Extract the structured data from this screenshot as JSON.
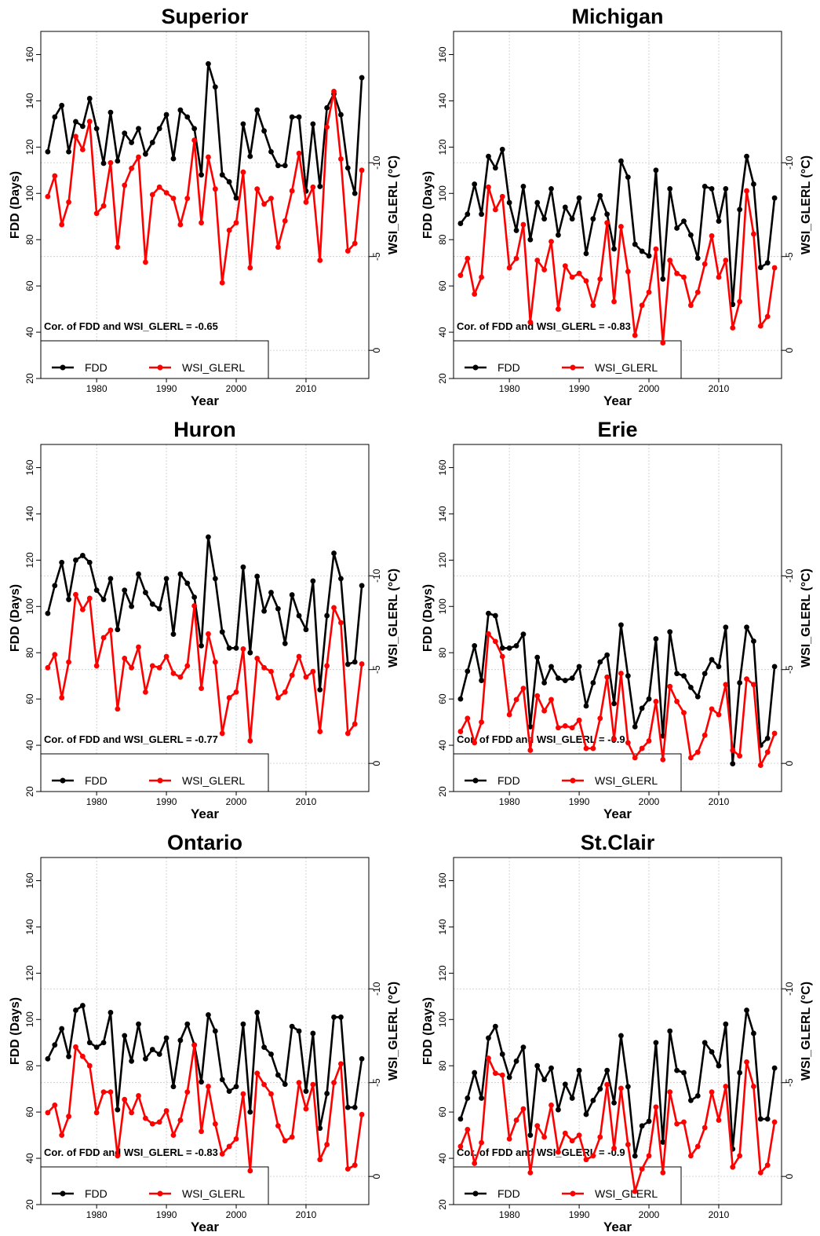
{
  "chart_data": [
    {
      "type": "line",
      "title": "Superior",
      "xlabel": "Year",
      "ylabel": "FDD (Days)",
      "y2label": "WSI_GLERL (°C)",
      "xlim": [
        1972,
        2019
      ],
      "ylim": [
        20,
        170
      ],
      "y2lim": [
        1.5,
        -17
      ],
      "xticks": [
        1980,
        1990,
        2000,
        2010
      ],
      "yticks": [
        20,
        40,
        60,
        80,
        100,
        120,
        140,
        160
      ],
      "y2ticks": [
        0,
        -5,
        -10
      ],
      "grid": true,
      "legend_position": "bottom-left",
      "annotation": "Cor. of FDD and WSI_GLERL = -0.65",
      "x": [
        1973,
        1974,
        1975,
        1976,
        1977,
        1978,
        1979,
        1980,
        1981,
        1982,
        1983,
        1984,
        1985,
        1986,
        1987,
        1988,
        1989,
        1990,
        1991,
        1992,
        1993,
        1994,
        1995,
        1996,
        1997,
        1998,
        1999,
        2000,
        2001,
        2002,
        2003,
        2004,
        2005,
        2006,
        2007,
        2008,
        2009,
        2010,
        2011,
        2012,
        2013,
        2014,
        2015,
        2016,
        2017,
        2018
      ],
      "series": [
        {
          "name": "FDD",
          "color": "#000000",
          "axis": "left",
          "values": [
            118,
            133,
            138,
            118,
            131,
            129,
            141,
            128,
            113,
            135,
            114,
            126,
            122,
            128,
            117,
            122,
            128,
            134,
            115,
            136,
            133,
            128,
            108,
            156,
            146,
            108,
            105,
            98,
            130,
            116,
            136,
            127,
            118,
            112,
            112,
            133,
            133,
            101,
            130,
            103,
            137,
            143,
            134,
            111,
            100,
            150
          ]
        },
        {
          "name": "WSI_GLERL",
          "color": "#ff0000",
          "axis": "right",
          "values": [
            -8.2,
            -9.3,
            -6.7,
            -7.9,
            -11.4,
            -10.7,
            -12.2,
            -7.3,
            -7.7,
            -10.0,
            -5.5,
            -8.8,
            -9.7,
            -10.3,
            -4.7,
            -8.3,
            -8.7,
            -8.4,
            -8.1,
            -6.7,
            -8.1,
            -11.2,
            -6.8,
            -10.3,
            -8.6,
            -3.6,
            -6.4,
            -6.8,
            -9.5,
            -4.4,
            -8.6,
            -7.8,
            -8.1,
            -5.5,
            -6.9,
            -8.5,
            -10.5,
            -7.9,
            -8.7,
            -4.8,
            -11.9,
            -13.8,
            -10.2,
            -5.3,
            -5.7,
            -9.6
          ]
        }
      ]
    },
    {
      "type": "line",
      "title": "Michigan",
      "xlabel": "Year",
      "ylabel": "FDD (Days)",
      "y2label": "WSI_GLERL (°C)",
      "xlim": [
        1972,
        2019
      ],
      "ylim": [
        20,
        170
      ],
      "y2lim": [
        1.5,
        -17
      ],
      "xticks": [
        1980,
        1990,
        2000,
        2010
      ],
      "yticks": [
        20,
        40,
        60,
        80,
        100,
        120,
        140,
        160
      ],
      "y2ticks": [
        0,
        -5,
        -10
      ],
      "grid": true,
      "legend_position": "bottom-left",
      "annotation": "Cor. of FDD and WSI_GLERL = -0.83",
      "x": [
        1973,
        1974,
        1975,
        1976,
        1977,
        1978,
        1979,
        1980,
        1981,
        1982,
        1983,
        1984,
        1985,
        1986,
        1987,
        1988,
        1989,
        1990,
        1991,
        1992,
        1993,
        1994,
        1995,
        1996,
        1997,
        1998,
        1999,
        2000,
        2001,
        2002,
        2003,
        2004,
        2005,
        2006,
        2007,
        2008,
        2009,
        2010,
        2011,
        2012,
        2013,
        2014,
        2015,
        2016,
        2017,
        2018
      ],
      "series": [
        {
          "name": "FDD",
          "color": "#000000",
          "axis": "left",
          "values": [
            87,
            91,
            104,
            91,
            116,
            111,
            119,
            96,
            84,
            103,
            80,
            96,
            89,
            102,
            82,
            94,
            89,
            98,
            74,
            89,
            99,
            91,
            76,
            114,
            107,
            78,
            75,
            73,
            110,
            63,
            102,
            85,
            88,
            82,
            72,
            103,
            102,
            88,
            102,
            52,
            93,
            116,
            104,
            68,
            70,
            98
          ]
        },
        {
          "name": "WSI_GLERL",
          "color": "#ff0000",
          "axis": "right",
          "values": [
            -4.0,
            -4.9,
            -3.0,
            -3.9,
            -8.7,
            -7.5,
            -8.2,
            -4.4,
            -4.9,
            -6.7,
            -1.5,
            -4.8,
            -4.3,
            -5.8,
            -2.2,
            -4.5,
            -3.9,
            -4.1,
            -3.7,
            -2.4,
            -3.8,
            -6.8,
            -2.6,
            -6.6,
            -4.2,
            -0.8,
            -2.4,
            -3.1,
            -5.4,
            -0.4,
            -4.8,
            -4.1,
            -3.9,
            -2.4,
            -3.1,
            -4.6,
            -6.1,
            -3.9,
            -4.8,
            -1.2,
            -2.6,
            -8.5,
            -6.2,
            -1.3,
            -1.8,
            -4.4
          ]
        }
      ]
    },
    {
      "type": "line",
      "title": "Huron",
      "xlabel": "Year",
      "ylabel": "FDD (Days)",
      "y2label": "WSI_GLERL (°C)",
      "xlim": [
        1972,
        2019
      ],
      "ylim": [
        20,
        170
      ],
      "y2lim": [
        1.5,
        -17
      ],
      "xticks": [
        1980,
        1990,
        2000,
        2010
      ],
      "yticks": [
        20,
        40,
        60,
        80,
        100,
        120,
        140,
        160
      ],
      "y2ticks": [
        0,
        -5,
        -10
      ],
      "grid": true,
      "legend_position": "bottom-left",
      "annotation": "Cor. of FDD and WSI_GLERL = -0.77",
      "x": [
        1973,
        1974,
        1975,
        1976,
        1977,
        1978,
        1979,
        1980,
        1981,
        1982,
        1983,
        1984,
        1985,
        1986,
        1987,
        1988,
        1989,
        1990,
        1991,
        1992,
        1993,
        1994,
        1995,
        1996,
        1997,
        1998,
        1999,
        2000,
        2001,
        2002,
        2003,
        2004,
        2005,
        2006,
        2007,
        2008,
        2009,
        2010,
        2011,
        2012,
        2013,
        2014,
        2015,
        2016,
        2017,
        2018
      ],
      "series": [
        {
          "name": "FDD",
          "color": "#000000",
          "axis": "left",
          "values": [
            97,
            109,
            119,
            103,
            120,
            122,
            119,
            107,
            103,
            112,
            90,
            107,
            100,
            114,
            106,
            101,
            99,
            112,
            88,
            114,
            110,
            104,
            83,
            130,
            112,
            89,
            82,
            82,
            117,
            80,
            113,
            98,
            106,
            99,
            84,
            105,
            96,
            90,
            111,
            64,
            96,
            123,
            112,
            75,
            76,
            109
          ]
        },
        {
          "name": "WSI_GLERL",
          "color": "#ff0000",
          "axis": "right",
          "values": [
            -5.1,
            -5.8,
            -3.5,
            -5.4,
            -9.0,
            -8.2,
            -8.8,
            -5.2,
            -6.7,
            -7.1,
            -2.9,
            -5.6,
            -5.1,
            -6.2,
            -3.8,
            -5.2,
            -5.1,
            -5.7,
            -4.8,
            -4.6,
            -5.2,
            -8.4,
            -4.0,
            -6.9,
            -5.4,
            -1.6,
            -3.5,
            -3.8,
            -6.1,
            -1.2,
            -5.6,
            -5.1,
            -4.9,
            -3.5,
            -3.8,
            -4.7,
            -5.7,
            -4.6,
            -4.9,
            -1.7,
            -5.2,
            -8.3,
            -7.5,
            -1.6,
            -2.1,
            -5.3
          ]
        }
      ]
    },
    {
      "type": "line",
      "title": "Erie",
      "xlabel": "Year",
      "ylabel": "FDD (Days)",
      "y2label": "WSI_GLERL (°C)",
      "xlim": [
        1972,
        2019
      ],
      "ylim": [
        20,
        170
      ],
      "y2lim": [
        1.5,
        -17
      ],
      "xticks": [
        1980,
        1990,
        2000,
        2010
      ],
      "yticks": [
        20,
        40,
        60,
        80,
        100,
        120,
        140,
        160
      ],
      "y2ticks": [
        0,
        -5,
        -10
      ],
      "grid": true,
      "legend_position": "bottom-left",
      "annotation": "Cor. of FDD and WSI_GLERL = -0.9",
      "x": [
        1973,
        1974,
        1975,
        1976,
        1977,
        1978,
        1979,
        1980,
        1981,
        1982,
        1983,
        1984,
        1985,
        1986,
        1987,
        1988,
        1989,
        1990,
        1991,
        1992,
        1993,
        1994,
        1995,
        1996,
        1997,
        1998,
        1999,
        2000,
        2001,
        2002,
        2003,
        2004,
        2005,
        2006,
        2007,
        2008,
        2009,
        2010,
        2011,
        2012,
        2013,
        2014,
        2015,
        2016,
        2017,
        2018
      ],
      "series": [
        {
          "name": "FDD",
          "color": "#000000",
          "axis": "left",
          "values": [
            60,
            72,
            83,
            68,
            97,
            96,
            82,
            82,
            83,
            88,
            48,
            78,
            67,
            74,
            69,
            68,
            69,
            74,
            57,
            67,
            76,
            79,
            58,
            92,
            70,
            48,
            56,
            60,
            86,
            44,
            89,
            71,
            70,
            65,
            61,
            71,
            77,
            74,
            91,
            32,
            67,
            91,
            85,
            40,
            43,
            74
          ]
        },
        {
          "name": "WSI_GLERL",
          "color": "#ff0000",
          "axis": "right",
          "values": [
            -1.7,
            -2.4,
            -1.1,
            -2.2,
            -6.9,
            -6.5,
            -5.7,
            -2.6,
            -3.4,
            -4.0,
            -0.7,
            -3.6,
            -2.8,
            -3.4,
            -1.9,
            -2.0,
            -1.9,
            -2.3,
            -0.8,
            -0.8,
            -2.4,
            -4.6,
            -1.3,
            -4.8,
            -1.1,
            -0.3,
            -0.8,
            -1.2,
            -3.3,
            -0.2,
            -4.1,
            -3.3,
            -2.7,
            -0.3,
            -0.6,
            -1.5,
            -2.9,
            -2.6,
            -4.2,
            -0.7,
            -0.4,
            -4.5,
            -4.2,
            0.1,
            -0.6,
            -1.6
          ]
        }
      ]
    },
    {
      "type": "line",
      "title": "Ontario",
      "xlabel": "Year",
      "ylabel": "FDD (Days)",
      "y2label": "WSI_GLERL (°C)",
      "xlim": [
        1972,
        2019
      ],
      "ylim": [
        20,
        170
      ],
      "y2lim": [
        1.5,
        -17
      ],
      "xticks": [
        1980,
        1990,
        2000,
        2010
      ],
      "yticks": [
        20,
        40,
        60,
        80,
        100,
        120,
        140,
        160
      ],
      "y2ticks": [
        0,
        -5,
        -10
      ],
      "grid": true,
      "legend_position": "bottom-left",
      "annotation": "Cor. of FDD and WSI_GLERL = -0.83",
      "x": [
        1973,
        1974,
        1975,
        1976,
        1977,
        1978,
        1979,
        1980,
        1981,
        1982,
        1983,
        1984,
        1985,
        1986,
        1987,
        1988,
        1989,
        1990,
        1991,
        1992,
        1993,
        1994,
        1995,
        1996,
        1997,
        1998,
        1999,
        2000,
        2001,
        2002,
        2003,
        2004,
        2005,
        2006,
        2007,
        2008,
        2009,
        2010,
        2011,
        2012,
        2013,
        2014,
        2015,
        2016,
        2017,
        2018
      ],
      "series": [
        {
          "name": "FDD",
          "color": "#000000",
          "axis": "left",
          "values": [
            83,
            89,
            96,
            84,
            104,
            106,
            90,
            88,
            90,
            103,
            61,
            93,
            82,
            98,
            83,
            87,
            85,
            92,
            71,
            91,
            98,
            89,
            73,
            102,
            95,
            74,
            69,
            71,
            98,
            60,
            103,
            88,
            85,
            76,
            72,
            97,
            95,
            69,
            94,
            53,
            68,
            101,
            101,
            62,
            62,
            83
          ]
        },
        {
          "name": "WSI_GLERL",
          "color": "#ff0000",
          "axis": "right",
          "values": [
            -3.4,
            -3.8,
            -2.2,
            -3.2,
            -6.9,
            -6.4,
            -5.9,
            -3.4,
            -4.5,
            -4.5,
            -1.1,
            -4.1,
            -3.4,
            -4.3,
            -3.1,
            -2.8,
            -2.9,
            -3.5,
            -2.2,
            -3.0,
            -4.5,
            -7.0,
            -2.4,
            -4.8,
            -2.8,
            -1.2,
            -1.6,
            -2.0,
            -4.4,
            -0.3,
            -5.5,
            -4.9,
            -4.4,
            -2.7,
            -1.9,
            -2.1,
            -5.0,
            -3.6,
            -4.9,
            -0.9,
            -1.7,
            -5.0,
            -6.0,
            -0.4,
            -0.6,
            -3.3
          ]
        }
      ]
    },
    {
      "type": "line",
      "title": "St.Clair",
      "xlabel": "Year",
      "ylabel": "FDD (Days)",
      "y2label": "WSI_GLERL (°C)",
      "xlim": [
        1972,
        2019
      ],
      "ylim": [
        20,
        170
      ],
      "y2lim": [
        1.5,
        -17
      ],
      "xticks": [
        1980,
        1990,
        2000,
        2010
      ],
      "yticks": [
        20,
        40,
        60,
        80,
        100,
        120,
        140,
        160
      ],
      "y2ticks": [
        0,
        -5,
        -10
      ],
      "grid": true,
      "legend_position": "bottom-left",
      "annotation": "Cor. of FDD and WSI_GLERL = -0.9",
      "x": [
        1973,
        1974,
        1975,
        1976,
        1977,
        1978,
        1979,
        1980,
        1981,
        1982,
        1983,
        1984,
        1985,
        1986,
        1987,
        1988,
        1989,
        1990,
        1991,
        1992,
        1993,
        1994,
        1995,
        1996,
        1997,
        1998,
        1999,
        2000,
        2001,
        2002,
        2003,
        2004,
        2005,
        2006,
        2007,
        2008,
        2009,
        2010,
        2011,
        2012,
        2013,
        2014,
        2015,
        2016,
        2017,
        2018
      ],
      "series": [
        {
          "name": "FDD",
          "color": "#000000",
          "axis": "left",
          "values": [
            57,
            66,
            77,
            66,
            92,
            97,
            85,
            75,
            82,
            88,
            50,
            80,
            74,
            79,
            61,
            72,
            66,
            78,
            59,
            65,
            70,
            78,
            64,
            93,
            71,
            41,
            54,
            56,
            90,
            47,
            95,
            78,
            77,
            65,
            67,
            90,
            86,
            80,
            98,
            44,
            77,
            104,
            94,
            57,
            57,
            79
          ]
        },
        {
          "name": "WSI_GLERL",
          "color": "#ff0000",
          "axis": "right",
          "values": [
            -1.6,
            -2.5,
            -0.7,
            -1.8,
            -6.3,
            -5.5,
            -5.4,
            -2.0,
            -3.0,
            -3.6,
            -0.2,
            -2.7,
            -2.1,
            -3.8,
            -1.3,
            -2.3,
            -1.9,
            -2.2,
            -0.9,
            -1.1,
            -2.1,
            -4.9,
            -1.5,
            -4.7,
            -1.7,
            0.8,
            -0.4,
            -1.1,
            -3.7,
            -0.2,
            -4.5,
            -2.8,
            -2.9,
            -1.1,
            -1.6,
            -2.6,
            -4.5,
            -3.0,
            -4.8,
            -0.5,
            -1.1,
            -6.1,
            -4.8,
            -0.2,
            -0.6,
            -2.9
          ]
        }
      ]
    }
  ]
}
